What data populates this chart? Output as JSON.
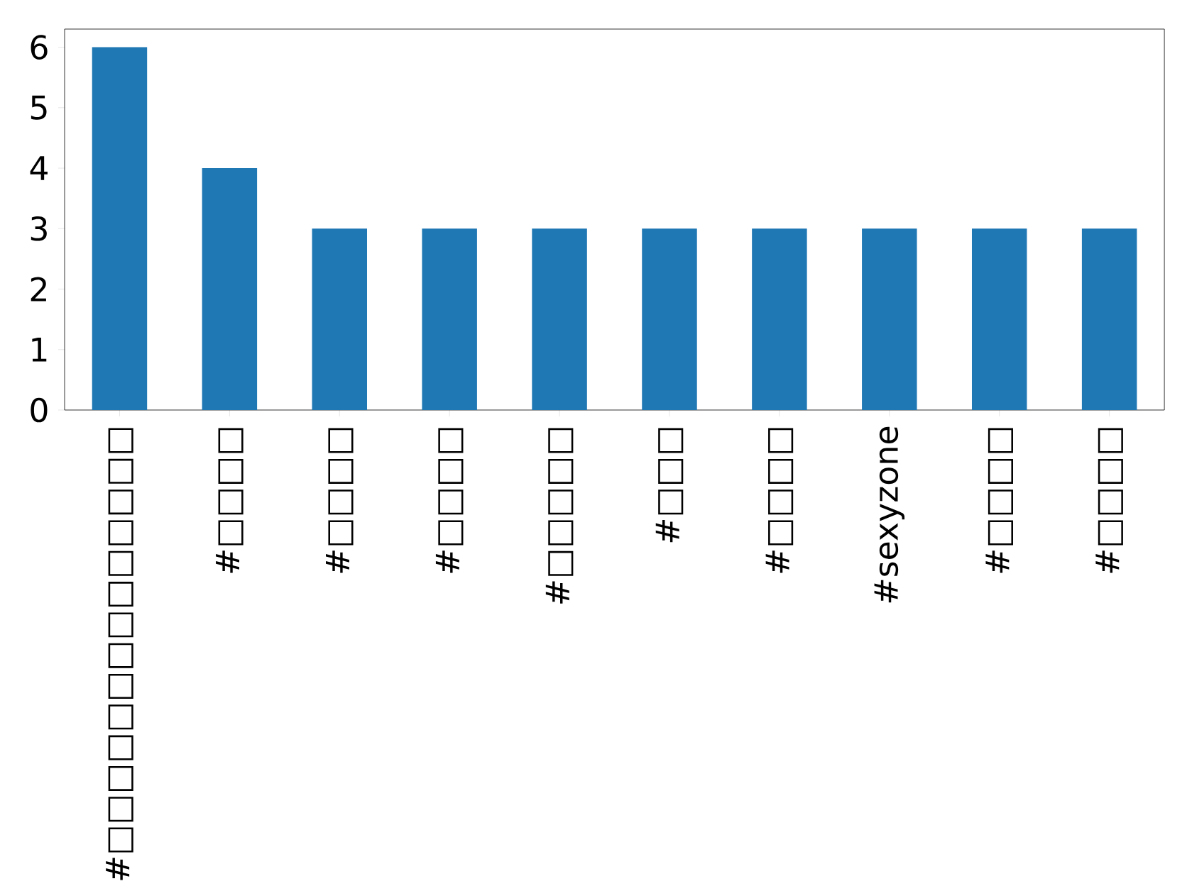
{
  "chart_data": {
    "type": "bar",
    "categories": [
      "#□□□□□□□□□□□□□□",
      "#□□□□",
      "#□□□□",
      "#□□□□",
      "#□□□□□",
      "#□□□",
      "#□□□□",
      "#sexyzone",
      "#□□□□",
      "#□□□□"
    ],
    "values": [
      6,
      4,
      3,
      3,
      3,
      3,
      3,
      3,
      3,
      3
    ],
    "color": "#1f77b4",
    "ylim": [
      0,
      6.3
    ],
    "yticks": [
      0,
      1,
      2,
      3,
      4,
      5,
      6
    ],
    "grid": false
  }
}
